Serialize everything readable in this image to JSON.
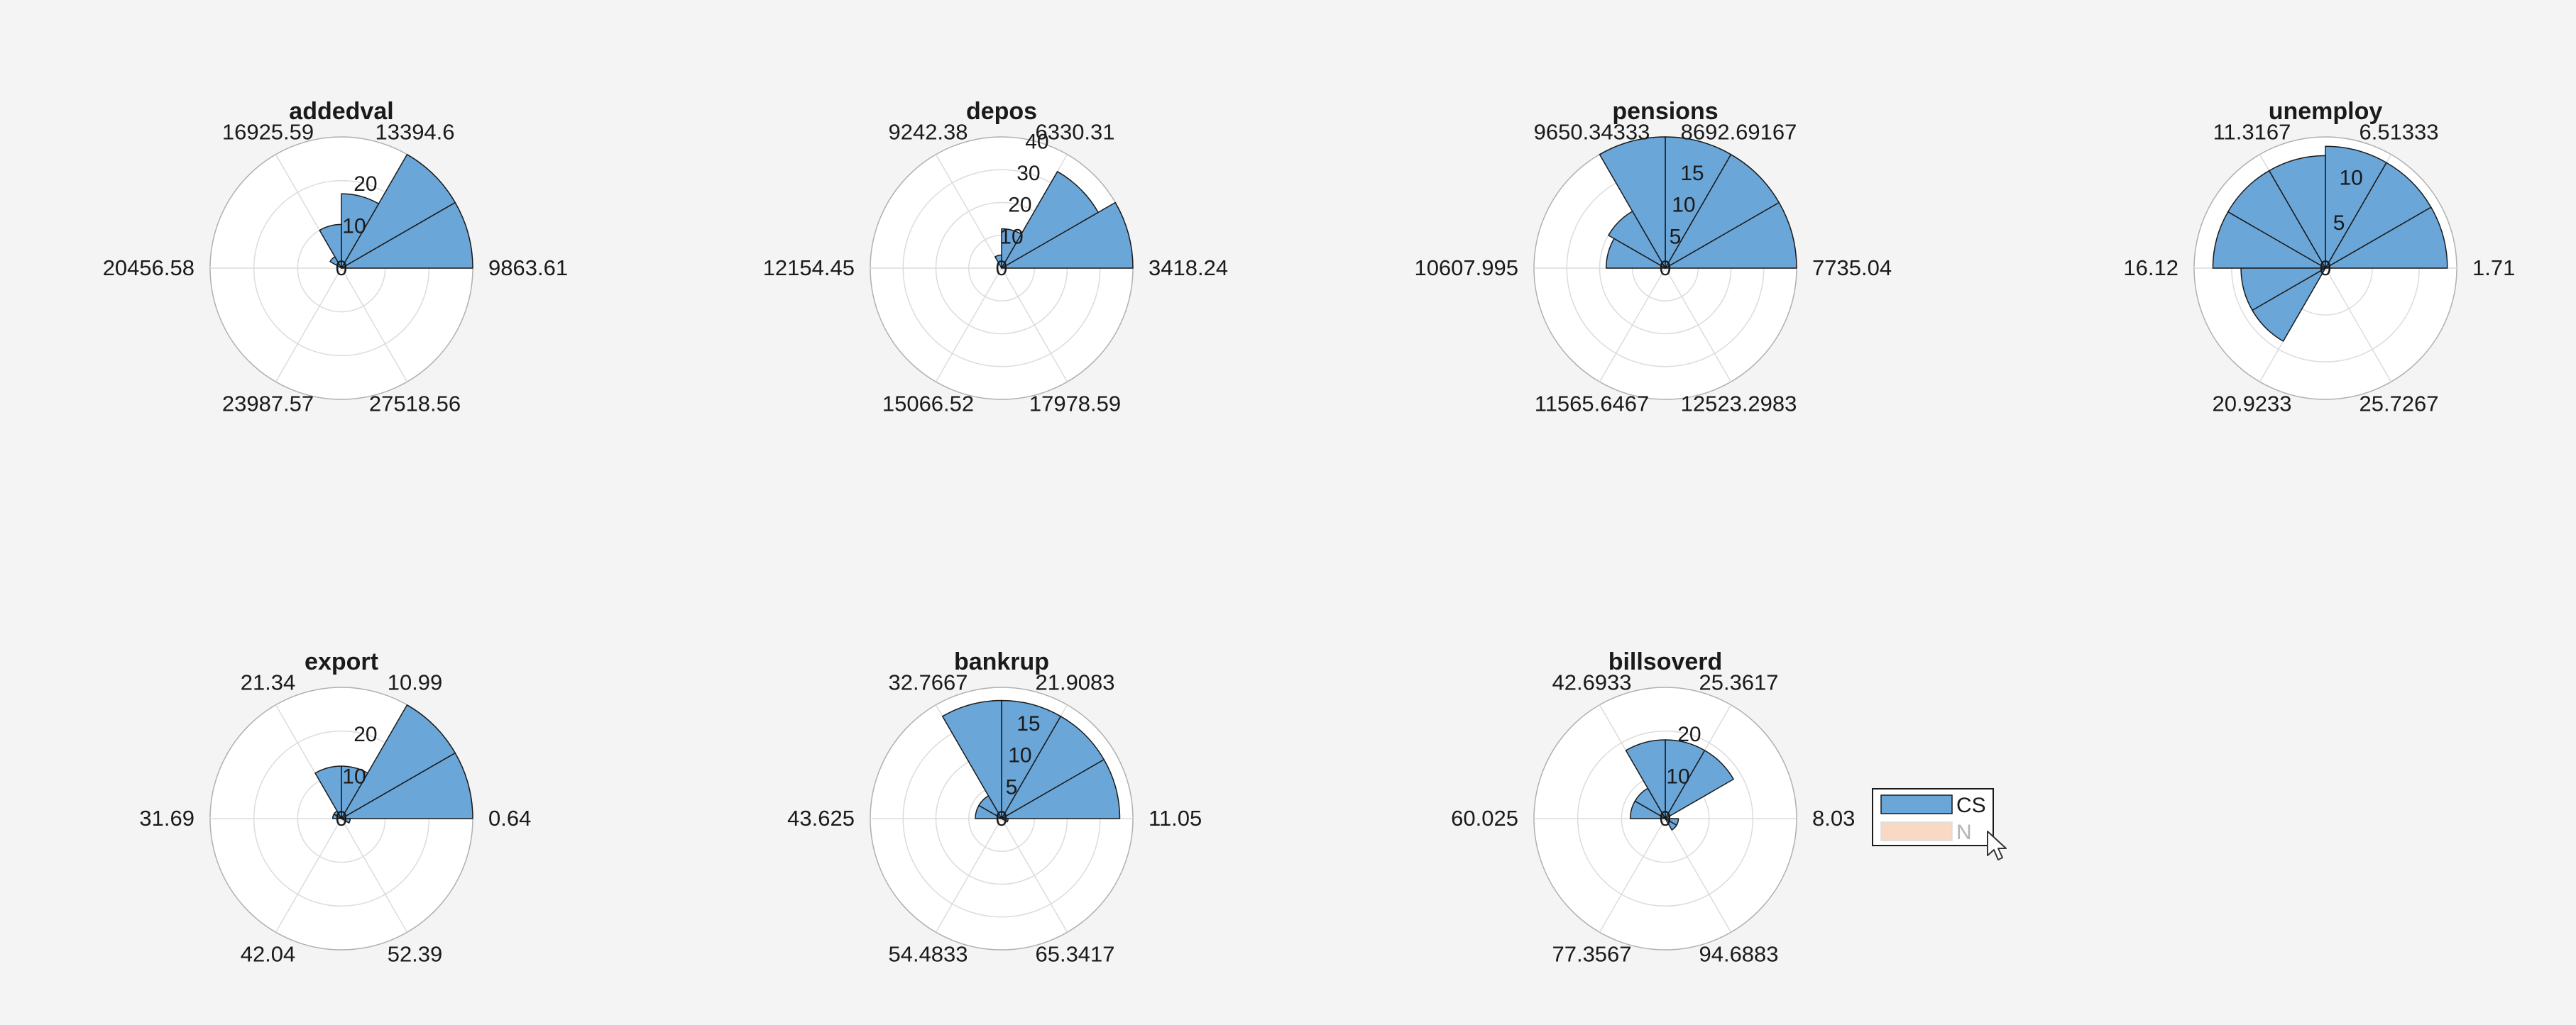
{
  "colors": {
    "background": "#f4f4f4",
    "axes_face": "#ffffff",
    "grid": "#dcdcdc",
    "axes_edge": "#b0b0b0",
    "bar_cs": "#6aa6d8",
    "bar_edge": "#1a1a1a",
    "bar_n": "#f7d9c4",
    "text": "#1a1a1a",
    "text_muted": "#b3b3b3"
  },
  "legend": {
    "entries": [
      {
        "label": "CS",
        "color": "#6aa6d8",
        "active": true
      },
      {
        "label": "N",
        "color": "#f7d9c4",
        "active": false
      }
    ],
    "cursor_icon": "arrow-pointer-icon"
  },
  "chart_data": [
    {
      "type": "polar-histogram",
      "title": "addedval",
      "angle_labels": [
        "9863.61",
        "13394.6",
        "16925.59",
        "20456.58",
        "23987.57",
        "27518.56"
      ],
      "rticks": [
        0,
        10,
        20
      ],
      "rlim": [
        0,
        30
      ],
      "bins": 12,
      "series": [
        {
          "name": "CS",
          "values": [
            30,
            30,
            17,
            10,
            3,
            0,
            0,
            0,
            0,
            0,
            0,
            0
          ]
        }
      ]
    },
    {
      "type": "polar-histogram",
      "title": "depos",
      "angle_labels": [
        "3418.24",
        "6330.31",
        "9242.38",
        "12154.45",
        "15066.52",
        "17978.59"
      ],
      "rticks": [
        0,
        10,
        20,
        30,
        40
      ],
      "rlim": [
        0,
        40
      ],
      "bins": 12,
      "series": [
        {
          "name": "CS",
          "values": [
            40,
            34,
            12,
            4,
            0,
            0,
            0,
            0,
            0,
            0,
            0,
            0
          ]
        }
      ]
    },
    {
      "type": "polar-histogram",
      "title": "pensions",
      "angle_labels": [
        "7735.04",
        "8692.69167",
        "9650.34333",
        "10607.995",
        "11565.6467",
        "12523.2983"
      ],
      "rticks": [
        0,
        5,
        10,
        15
      ],
      "rlim": [
        0,
        20
      ],
      "bins": 12,
      "series": [
        {
          "name": "CS",
          "values": [
            20,
            20,
            20,
            20,
            10,
            9,
            0,
            0,
            0,
            0,
            0,
            0
          ]
        }
      ]
    },
    {
      "type": "polar-histogram",
      "title": "unemploy",
      "angle_labels": [
        "1.71",
        "6.51333",
        "11.3167",
        "16.12",
        "20.9233",
        "25.7267"
      ],
      "rticks": [
        0,
        5,
        10
      ],
      "rlim": [
        0,
        14
      ],
      "bins": 12,
      "series": [
        {
          "name": "CS",
          "values": [
            13,
            13,
            13,
            12,
            12,
            12,
            9,
            9,
            0,
            0,
            0,
            0
          ]
        }
      ]
    },
    {
      "type": "polar-histogram",
      "title": "export",
      "angle_labels": [
        "0.64",
        "10.99",
        "21.34",
        "31.69",
        "42.04",
        "52.39"
      ],
      "rticks": [
        0,
        10,
        20
      ],
      "rlim": [
        0,
        30
      ],
      "bins": 12,
      "series": [
        {
          "name": "CS",
          "values": [
            30,
            30,
            12,
            12,
            2,
            2,
            0,
            0,
            0,
            0,
            0,
            2
          ]
        }
      ]
    },
    {
      "type": "polar-histogram",
      "title": "bankrup",
      "angle_labels": [
        "11.05",
        "21.9083",
        "32.7667",
        "43.625",
        "54.4833",
        "65.3417"
      ],
      "rticks": [
        0,
        5,
        10,
        15
      ],
      "rlim": [
        0,
        20
      ],
      "bins": 12,
      "series": [
        {
          "name": "CS",
          "values": [
            18,
            18,
            18,
            18,
            4,
            4,
            0,
            0,
            0,
            0,
            0,
            1
          ]
        }
      ]
    },
    {
      "type": "polar-histogram",
      "title": "billsoverd",
      "angle_labels": [
        "8.03",
        "25.3617",
        "42.6933",
        "60.025",
        "77.3567",
        "94.6883"
      ],
      "rticks": [
        0,
        10,
        20
      ],
      "rlim": [
        0,
        30
      ],
      "bins": 12,
      "series": [
        {
          "name": "CS",
          "values": [
            0,
            18,
            18,
            18,
            8,
            8,
            0,
            0,
            0,
            0,
            3,
            3
          ]
        }
      ]
    }
  ]
}
